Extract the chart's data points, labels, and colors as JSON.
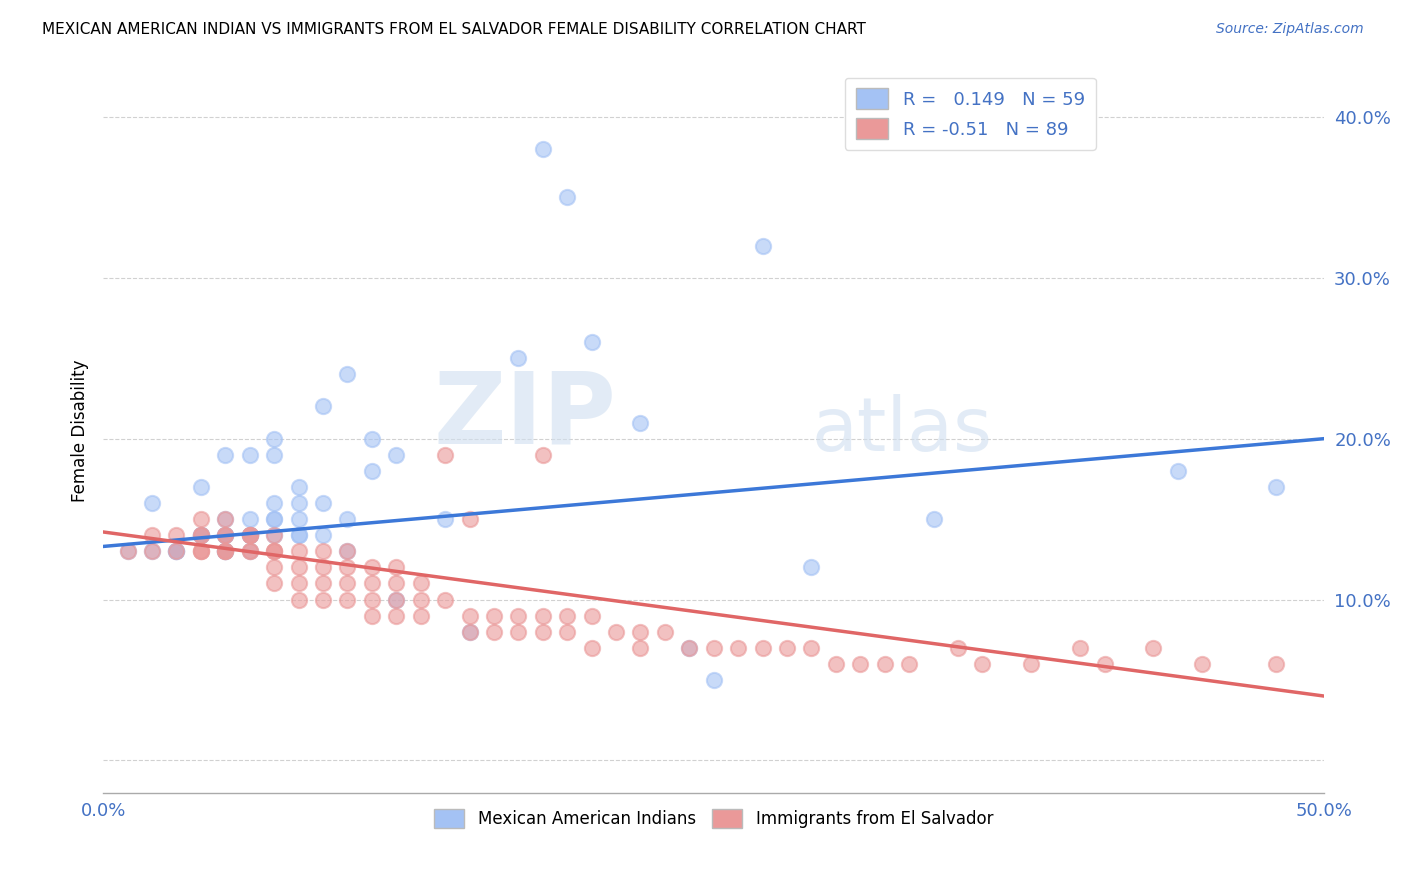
{
  "title": "MEXICAN AMERICAN INDIAN VS IMMIGRANTS FROM EL SALVADOR FEMALE DISABILITY CORRELATION CHART",
  "source": "Source: ZipAtlas.com",
  "ylabel": "Female Disability",
  "ytick_positions": [
    0.0,
    0.1,
    0.2,
    0.3,
    0.4
  ],
  "ytick_labels": [
    "",
    "10.0%",
    "20.0%",
    "30.0%",
    "40.0%"
  ],
  "xlim": [
    0.0,
    0.5
  ],
  "ylim": [
    -0.02,
    0.43
  ],
  "blue_R": 0.149,
  "blue_N": 59,
  "pink_R": -0.51,
  "pink_N": 89,
  "blue_color": "#a4c2f4",
  "pink_color": "#ea9999",
  "blue_line_color": "#3c78d8",
  "pink_line_color": "#e06666",
  "legend_label_blue": "Mexican American Indians",
  "legend_label_pink": "Immigrants from El Salvador",
  "watermark_zip": "ZIP",
  "watermark_atlas": "atlas",
  "blue_line_y_start": 0.133,
  "blue_line_y_end": 0.2,
  "pink_line_y_start": 0.142,
  "pink_line_y_end": 0.04,
  "blue_scatter_x": [
    0.01,
    0.02,
    0.02,
    0.03,
    0.03,
    0.03,
    0.04,
    0.04,
    0.04,
    0.04,
    0.05,
    0.05,
    0.05,
    0.05,
    0.05,
    0.05,
    0.05,
    0.05,
    0.06,
    0.06,
    0.06,
    0.06,
    0.06,
    0.06,
    0.07,
    0.07,
    0.07,
    0.07,
    0.07,
    0.07,
    0.08,
    0.08,
    0.08,
    0.08,
    0.08,
    0.09,
    0.09,
    0.09,
    0.1,
    0.1,
    0.1,
    0.11,
    0.11,
    0.12,
    0.12,
    0.14,
    0.15,
    0.17,
    0.18,
    0.19,
    0.2,
    0.22,
    0.24,
    0.25,
    0.27,
    0.29,
    0.34,
    0.44,
    0.48
  ],
  "blue_scatter_y": [
    0.13,
    0.16,
    0.13,
    0.13,
    0.13,
    0.13,
    0.14,
    0.14,
    0.14,
    0.17,
    0.13,
    0.13,
    0.13,
    0.14,
    0.14,
    0.14,
    0.15,
    0.19,
    0.13,
    0.14,
    0.14,
    0.14,
    0.15,
    0.19,
    0.14,
    0.15,
    0.15,
    0.16,
    0.19,
    0.2,
    0.14,
    0.14,
    0.15,
    0.16,
    0.17,
    0.14,
    0.16,
    0.22,
    0.13,
    0.15,
    0.24,
    0.18,
    0.2,
    0.1,
    0.19,
    0.15,
    0.08,
    0.25,
    0.38,
    0.35,
    0.26,
    0.21,
    0.07,
    0.05,
    0.32,
    0.12,
    0.15,
    0.18,
    0.17
  ],
  "pink_scatter_x": [
    0.01,
    0.02,
    0.02,
    0.03,
    0.03,
    0.04,
    0.04,
    0.04,
    0.04,
    0.04,
    0.04,
    0.05,
    0.05,
    0.05,
    0.05,
    0.05,
    0.05,
    0.06,
    0.06,
    0.06,
    0.06,
    0.06,
    0.07,
    0.07,
    0.07,
    0.07,
    0.07,
    0.07,
    0.08,
    0.08,
    0.08,
    0.08,
    0.09,
    0.09,
    0.09,
    0.09,
    0.1,
    0.1,
    0.1,
    0.1,
    0.11,
    0.11,
    0.11,
    0.11,
    0.12,
    0.12,
    0.12,
    0.12,
    0.13,
    0.13,
    0.13,
    0.14,
    0.14,
    0.15,
    0.15,
    0.15,
    0.16,
    0.16,
    0.17,
    0.17,
    0.18,
    0.18,
    0.18,
    0.19,
    0.19,
    0.2,
    0.2,
    0.21,
    0.22,
    0.22,
    0.23,
    0.24,
    0.25,
    0.26,
    0.27,
    0.28,
    0.29,
    0.3,
    0.31,
    0.32,
    0.33,
    0.35,
    0.36,
    0.38,
    0.4,
    0.41,
    0.43,
    0.45,
    0.48
  ],
  "pink_scatter_y": [
    0.13,
    0.13,
    0.14,
    0.13,
    0.14,
    0.13,
    0.13,
    0.13,
    0.14,
    0.14,
    0.15,
    0.13,
    0.13,
    0.13,
    0.14,
    0.14,
    0.15,
    0.13,
    0.13,
    0.14,
    0.14,
    0.14,
    0.11,
    0.12,
    0.13,
    0.13,
    0.13,
    0.14,
    0.1,
    0.11,
    0.12,
    0.13,
    0.1,
    0.11,
    0.12,
    0.13,
    0.1,
    0.11,
    0.12,
    0.13,
    0.09,
    0.1,
    0.11,
    0.12,
    0.09,
    0.1,
    0.11,
    0.12,
    0.09,
    0.1,
    0.11,
    0.1,
    0.19,
    0.08,
    0.09,
    0.15,
    0.08,
    0.09,
    0.08,
    0.09,
    0.08,
    0.09,
    0.19,
    0.08,
    0.09,
    0.07,
    0.09,
    0.08,
    0.07,
    0.08,
    0.08,
    0.07,
    0.07,
    0.07,
    0.07,
    0.07,
    0.07,
    0.06,
    0.06,
    0.06,
    0.06,
    0.07,
    0.06,
    0.06,
    0.07,
    0.06,
    0.07,
    0.06,
    0.06
  ]
}
